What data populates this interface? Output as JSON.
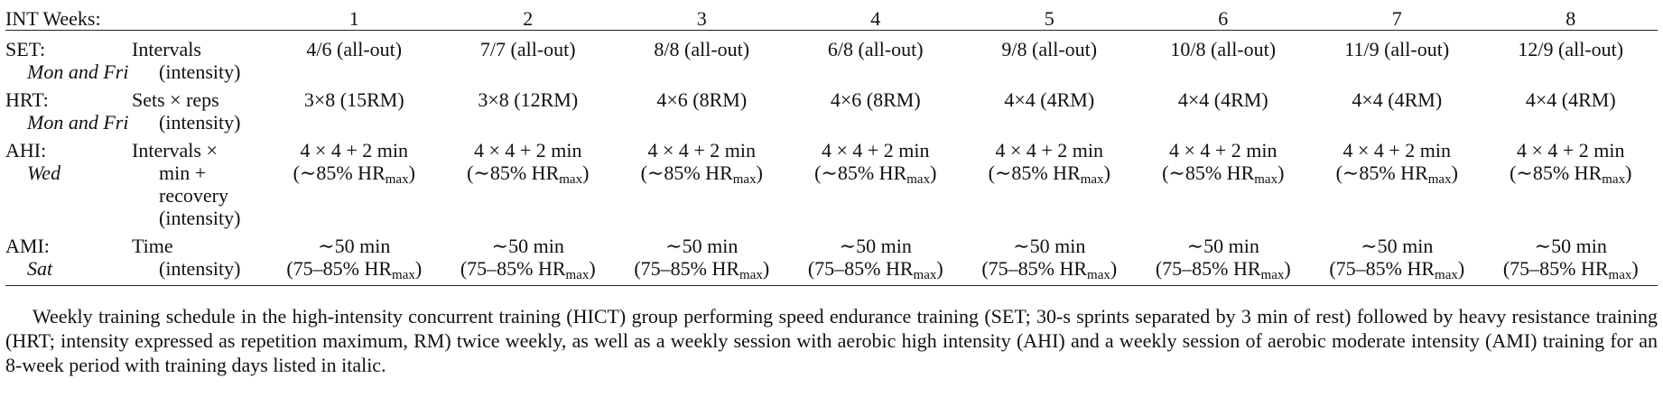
{
  "table": {
    "header_label": "INT Weeks:",
    "weeks": [
      "1",
      "2",
      "3",
      "4",
      "5",
      "6",
      "7",
      "8"
    ],
    "rows": [
      {
        "activity": "SET:",
        "day": "Mon and Fri",
        "label_lines": [
          "Intervals",
          "(intensity)"
        ],
        "cells": [
          [
            "4/6 (all-out)"
          ],
          [
            "7/7 (all-out)"
          ],
          [
            "8/8 (all-out)"
          ],
          [
            "6/8 (all-out)"
          ],
          [
            "9/8 (all-out)"
          ],
          [
            "10/8 (all-out)"
          ],
          [
            "11/9 (all-out)"
          ],
          [
            "12/9 (all-out)"
          ]
        ]
      },
      {
        "activity": "HRT:",
        "day": "Mon and Fri",
        "label_lines": [
          "Sets × reps",
          "(intensity)"
        ],
        "cells": [
          [
            "3×8 (15RM)"
          ],
          [
            "3×8 (12RM)"
          ],
          [
            "4×6 (8RM)"
          ],
          [
            "4×6 (8RM)"
          ],
          [
            "4×4 (4RM)"
          ],
          [
            "4×4 (4RM)"
          ],
          [
            "4×4 (4RM)"
          ],
          [
            "4×4 (4RM)"
          ]
        ]
      },
      {
        "activity": "AHI:",
        "day": "Wed",
        "label_lines": [
          "Intervals ×",
          "min +",
          "recovery",
          "(intensity)"
        ],
        "cells": [
          [
            "4 × 4 + 2 min",
            "(∼85% HR",
            "max",
            ")"
          ],
          [
            "4 × 4 + 2 min",
            "(∼85% HR",
            "max",
            ")"
          ],
          [
            "4 × 4 + 2 min",
            "(∼85% HR",
            "max",
            ")"
          ],
          [
            "4 × 4 + 2 min",
            "(∼85% HR",
            "max",
            ")"
          ],
          [
            "4 × 4 + 2 min",
            "(∼85% HR",
            "max",
            ")"
          ],
          [
            "4 × 4 + 2 min",
            "(∼85% HR",
            "max",
            ")"
          ],
          [
            "4 × 4 + 2 min",
            "(∼85% HR",
            "max",
            ")"
          ],
          [
            "4 × 4 + 2 min",
            "(∼85% HR",
            "max",
            ")"
          ]
        ]
      },
      {
        "activity": "AMI:",
        "day": "Sat",
        "label_lines": [
          "Time",
          "(intensity)"
        ],
        "cells": [
          [
            "∼50 min",
            "(75–85% HR",
            "max",
            ")"
          ],
          [
            "∼50 min",
            "(75–85% HR",
            "max",
            ")"
          ],
          [
            "∼50 min",
            "(75–85% HR",
            "max",
            ")"
          ],
          [
            "∼50 min",
            "(75–85% HR",
            "max",
            ")"
          ],
          [
            "∼50 min",
            "(75–85% HR",
            "max",
            ")"
          ],
          [
            "∼50 min",
            "(75–85% HR",
            "max",
            ")"
          ],
          [
            "∼50 min",
            "(75–85% HR",
            "max",
            ")"
          ],
          [
            "∼50 min",
            "(75–85% HR",
            "max",
            ")"
          ]
        ]
      }
    ]
  },
  "caption": "Weekly training schedule in the high-intensity concurrent training (HICT) group performing speed endurance training (SET; 30-s sprints separated by 3 min of rest) followed by heavy resistance training (HRT; intensity expressed as repetition maximum, RM) twice weekly, as well as a weekly session with aerobic high intensity (AHI) and a weekly session of aerobic moderate intensity (AMI) training for an 8-week period with training days listed in italic."
}
